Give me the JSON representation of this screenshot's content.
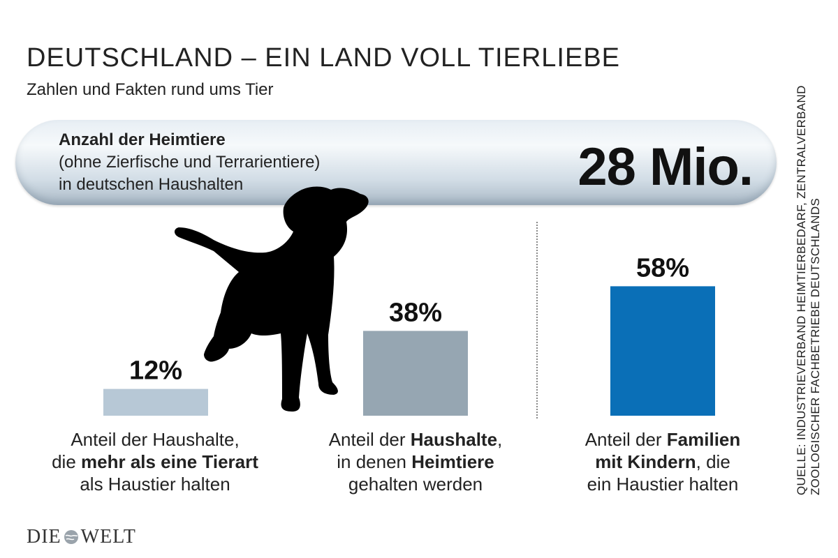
{
  "header": {
    "title": "DEUTSCHLAND – EIN LAND VOLL TIERLIEBE",
    "subtitle": "Zahlen und Fakten rund ums Tier"
  },
  "banner": {
    "label_bold": "Anzahl der Heimtiere",
    "label_line2": "(ohne Zierfische und Terrarientiere)",
    "label_line3": "in deutschen Haushalten",
    "value": "28 Mio."
  },
  "captions": [
    {
      "pre": "Anteil der Haushalte,",
      "mid_pre": "die ",
      "mid_bold": "mehr als eine Tierart",
      "post": "als Haustier halten"
    },
    {
      "pre": "Anteil der ",
      "pre_bold": "Haushalte",
      "pre_post": ",",
      "mid_pre": "in denen ",
      "mid_bold": "Heimtiere",
      "post": "gehalten werden"
    },
    {
      "pre": "Anteil der ",
      "pre_bold": "Familien",
      "mid_bold": "mit Kindern",
      "mid_post": ", die",
      "post": "ein Haustier halten"
    }
  ],
  "source": "QUELLE: INDUSTRIEVERBAND HEIMTIERBEDARF, ZENTRALVERBAND ZOOLOGISCHER FACHBETRIEBE DEUTSCHLANDS",
  "logo": {
    "left": "DIE",
    "right": "WELT"
  },
  "colors": {
    "bar1": "#b7c8d6",
    "bar2": "#96a6b2",
    "bar3": "#0a6fb7"
  },
  "chart_data": {
    "type": "bar",
    "categories": [
      "Anteil der Haushalte, die mehr als eine Tierart als Haustier halten",
      "Anteil der Haushalte, in denen Heimtiere gehalten werden",
      "Anteil der Familien mit Kindern, die ein Haustier halten"
    ],
    "values": [
      12,
      38,
      58
    ],
    "value_labels": [
      "12%",
      "38%",
      "58%"
    ],
    "unit": "%",
    "ylim": [
      0,
      100
    ],
    "grid": false,
    "legend": "none"
  }
}
